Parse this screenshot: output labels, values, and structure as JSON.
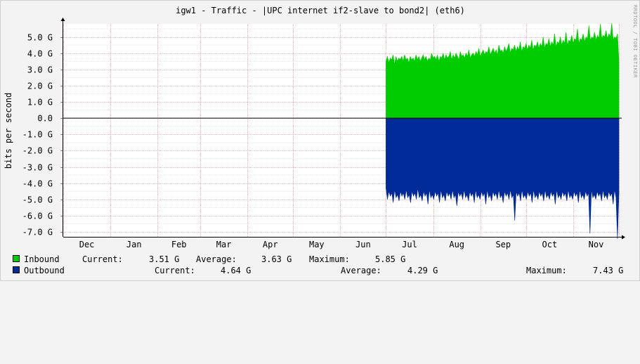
{
  "chart_data": {
    "type": "area",
    "title": "igw1 - Traffic - |UPC internet if2-slave to bond2| (eth6)",
    "ylabel": "bits per second",
    "watermark": "RRDTOOL / TOBI OETIKER",
    "ylim": [
      -7.3,
      5.8
    ],
    "y_ticks": [
      5,
      4,
      3,
      2,
      1,
      0,
      -1,
      -2,
      -3,
      -4,
      -5,
      -6,
      -7
    ],
    "y_tick_labels": [
      "5.0 G",
      "4.0 G",
      "3.0 G",
      "2.0 G",
      "1.0 G",
      "0.0",
      "-1.0 G",
      "-2.0 G",
      "-3.0 G",
      "-4.0 G",
      "-5.0 G",
      "-6.0 G",
      "-7.0 G"
    ],
    "x_range_days": [
      0,
      365
    ],
    "month_starts": [
      0,
      31,
      62,
      90,
      121,
      151,
      182,
      212,
      243,
      274,
      304,
      335,
      365
    ],
    "x_ticks": [
      "Dec",
      "Jan",
      "Feb",
      "Mar",
      "Apr",
      "May",
      "Jun",
      "Jul",
      "Aug",
      "Sep",
      "Oct",
      "Nov"
    ],
    "data_start_day": 212,
    "grid": true,
    "series": [
      {
        "name": "Inbound",
        "color": "#00cc00",
        "values": [
          3.5,
          3.8,
          3.4,
          3.7,
          3.6,
          3.9,
          3.3,
          3.8,
          3.5,
          3.7,
          3.6,
          3.8,
          3.5,
          3.9,
          3.6,
          3.7,
          3.4,
          3.8,
          3.6,
          3.7,
          3.5,
          3.9,
          3.6,
          3.8,
          3.5,
          3.7,
          3.9,
          3.6,
          3.8,
          3.5,
          3.7,
          3.6,
          4.0,
          3.7,
          3.8,
          3.6,
          3.9,
          3.5,
          3.8,
          3.7,
          4.0,
          3.6,
          3.9,
          3.7,
          3.8,
          4.1,
          3.6,
          3.9,
          3.7,
          4.0,
          3.8,
          3.6,
          4.1,
          3.8,
          3.9,
          3.7,
          4.0,
          3.8,
          4.2,
          3.7,
          3.9,
          4.0,
          3.8,
          4.1,
          3.9,
          4.3,
          3.8,
          4.0,
          4.2,
          3.9,
          4.1,
          4.0,
          4.4,
          3.9,
          4.1,
          4.3,
          4.0,
          4.2,
          3.9,
          4.5,
          4.1,
          4.2,
          4.0,
          4.4,
          4.1,
          4.3,
          4.6,
          4.0,
          4.3,
          4.2,
          4.5,
          4.1,
          4.4,
          4.2,
          4.7,
          4.1,
          4.4,
          4.3,
          4.6,
          4.2,
          4.5,
          4.3,
          4.8,
          4.2,
          4.5,
          4.4,
          4.7,
          4.3,
          4.6,
          4.4,
          5.0,
          4.3,
          4.6,
          4.5,
          4.9,
          4.4,
          4.7,
          4.5,
          5.2,
          4.4,
          4.7,
          4.6,
          5.0,
          4.5,
          4.8,
          4.6,
          5.3,
          4.5,
          4.8,
          4.7,
          5.1,
          4.6,
          4.9,
          4.8,
          5.5,
          4.6,
          4.9,
          4.8,
          5.2,
          4.7,
          5.0,
          4.9,
          5.7,
          4.8,
          5.0,
          4.9,
          5.3,
          4.8,
          5.1,
          4.9,
          5.8,
          4.9,
          5.1,
          5.0,
          5.4,
          4.9,
          5.2,
          5.0,
          5.85,
          4.8,
          5.0,
          4.9,
          5.2,
          3.51
        ],
        "current": "3.51 G",
        "average": "3.63 G",
        "maximum": "5.85 G"
      },
      {
        "name": "Outbound",
        "color": "#002a97",
        "values": [
          -4.3,
          -5.0,
          -4.5,
          -4.8,
          -4.6,
          -5.2,
          -4.4,
          -4.9,
          -4.7,
          -5.1,
          -4.5,
          -4.8,
          -4.6,
          -5.0,
          -4.4,
          -4.9,
          -4.7,
          -5.2,
          -4.5,
          -4.8,
          -4.6,
          -5.0,
          -4.3,
          -4.9,
          -4.7,
          -5.1,
          -4.5,
          -4.8,
          -4.6,
          -5.3,
          -4.4,
          -4.9,
          -4.7,
          -5.0,
          -4.5,
          -4.8,
          -4.6,
          -5.2,
          -4.4,
          -4.9,
          -4.7,
          -5.1,
          -4.5,
          -4.8,
          -4.6,
          -5.0,
          -4.4,
          -4.9,
          -4.7,
          -5.4,
          -4.5,
          -4.8,
          -4.6,
          -5.0,
          -4.4,
          -4.9,
          -4.7,
          -5.1,
          -4.5,
          -4.8,
          -4.6,
          -5.2,
          -4.4,
          -4.9,
          -4.7,
          -5.0,
          -4.5,
          -4.8,
          -4.6,
          -5.3,
          -4.4,
          -4.9,
          -4.7,
          -5.1,
          -4.5,
          -4.8,
          -4.6,
          -5.0,
          -4.4,
          -4.9,
          -4.7,
          -5.2,
          -4.5,
          -4.8,
          -4.6,
          -5.0,
          -4.4,
          -4.9,
          -4.7,
          -6.3,
          -4.5,
          -4.8,
          -4.6,
          -5.1,
          -4.4,
          -4.9,
          -4.7,
          -5.0,
          -4.5,
          -4.8,
          -4.6,
          -5.2,
          -4.4,
          -4.9,
          -4.7,
          -5.0,
          -4.5,
          -4.8,
          -4.6,
          -5.1,
          -4.4,
          -4.9,
          -4.7,
          -5.0,
          -4.5,
          -4.8,
          -4.6,
          -5.3,
          -4.4,
          -4.9,
          -4.7,
          -5.0,
          -4.5,
          -4.8,
          -4.6,
          -5.1,
          -4.4,
          -4.9,
          -4.7,
          -5.0,
          -4.5,
          -4.8,
          -4.6,
          -5.2,
          -4.4,
          -4.9,
          -4.7,
          -5.0,
          -4.5,
          -4.8,
          -4.6,
          -7.1,
          -4.4,
          -4.9,
          -4.7,
          -5.0,
          -4.5,
          -4.8,
          -4.6,
          -5.1,
          -4.4,
          -4.9,
          -4.7,
          -5.0,
          -4.5,
          -4.8,
          -4.6,
          -5.3,
          -4.4,
          -4.9,
          -7.43,
          -4.64
        ],
        "current": "4.64 G",
        "average": "4.29 G",
        "maximum": "7.43 G"
      }
    ]
  },
  "legend": {
    "current_label": "Current:",
    "average_label": "Average:",
    "maximum_label": "Maximum:"
  }
}
